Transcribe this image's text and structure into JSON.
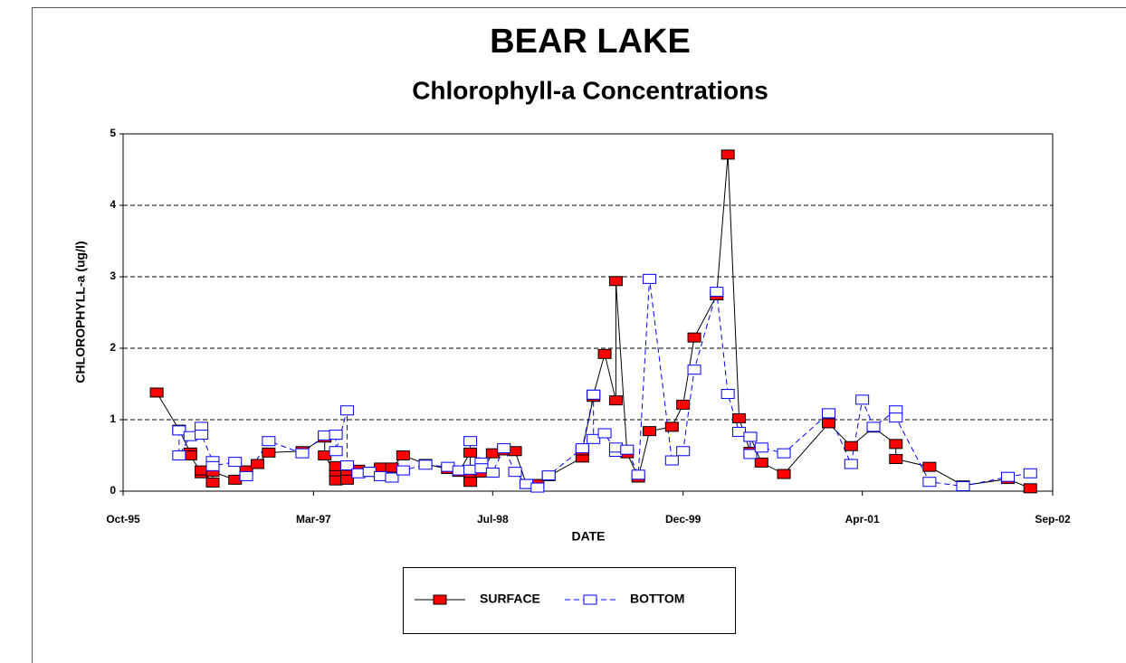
{
  "chart_data": {
    "type": "line",
    "title": "BEAR LAKE",
    "subtitle": "Chlorophyll-a Concentrations",
    "x_label": "DATE",
    "y_label": "CHLOROPHYLL-a (ug/l)",
    "xlim": [
      "1995-10",
      "2002-09"
    ],
    "xticks": [
      {
        "value": "1995-10",
        "label": "Oct-95"
      },
      {
        "value": "1997-03",
        "label": "Mar-97"
      },
      {
        "value": "1998-07",
        "label": "Jul-98"
      },
      {
        "value": "1999-12",
        "label": "Dec-99"
      },
      {
        "value": "2001-04",
        "label": "Apr-01"
      },
      {
        "value": "2002-09",
        "label": "Sep-02"
      }
    ],
    "ylim": [
      0,
      5
    ],
    "yticks": [
      0,
      1,
      2,
      3,
      4,
      5
    ],
    "grid": true,
    "legend": "bottom",
    "series": [
      {
        "name": "SURFACE",
        "color": "#ff0000",
        "x": [
          "1996-01",
          "1996-03",
          "1996-04",
          "1996-04",
          "1996-05",
          "1996-05",
          "1996-06",
          "1996-06",
          "1996-08",
          "1996-09",
          "1996-10",
          "1996-11",
          "1997-02",
          "1997-04",
          "1997-04",
          "1997-05",
          "1997-05",
          "1997-05",
          "1997-06",
          "1997-06",
          "1997-07",
          "1997-08",
          "1997-09",
          "1997-10",
          "1997-11",
          "1998-01",
          "1998-03",
          "1998-04",
          "1998-04",
          "1998-05",
          "1998-05",
          "1998-05",
          "1998-06",
          "1998-07",
          "1998-08",
          "1998-09",
          "1998-10",
          "1998-11",
          "1998-12",
          "1999-03",
          "1999-03",
          "1999-04",
          "1999-04",
          "1999-05",
          "1999-06",
          "1999-06",
          "1999-07",
          "1999-08",
          "1999-09",
          "1999-11",
          "1999-12",
          "2000-01",
          "2000-03",
          "2000-04",
          "2000-05",
          "2000-06",
          "2000-06",
          "2000-07",
          "2000-09",
          "2001-01",
          "2001-03",
          "2001-05",
          "2001-07",
          "2001-07",
          "2001-10",
          "2002-01",
          "2002-05",
          "2002-07"
        ],
        "values": [
          1.38,
          0.86,
          0.54,
          0.5,
          0.25,
          0.29,
          0.12,
          0.27,
          0.16,
          0.29,
          0.38,
          0.54,
          0.56,
          0.75,
          0.5,
          0.24,
          0.35,
          0.15,
          0.23,
          0.16,
          0.3,
          0.27,
          0.33,
          0.33,
          0.5,
          0.38,
          0.31,
          0.28,
          0.27,
          0.54,
          0.2,
          0.13,
          0.26,
          0.53,
          0.57,
          0.56,
          0.1,
          0.1,
          0.21,
          0.47,
          0.57,
          1.32,
          1.35,
          1.92,
          1.27,
          2.94,
          0.53,
          0.19,
          0.84,
          0.9,
          1.21,
          2.15,
          2.74,
          4.71,
          1.02,
          0.55,
          0.76,
          0.4,
          0.24,
          0.95,
          0.63,
          0.89,
          0.66,
          0.45,
          0.34,
          0.08,
          0.17,
          0.04
        ]
      },
      {
        "name": "BOTTOM",
        "color": "#0000ff",
        "x": [
          "1996-03",
          "1996-03",
          "1996-04",
          "1996-05",
          "1996-05",
          "1996-06",
          "1996-06",
          "1996-08",
          "1996-09",
          "1996-11",
          "1997-02",
          "1997-04",
          "1997-05",
          "1997-05",
          "1997-06",
          "1997-06",
          "1997-07",
          "1997-08",
          "1997-09",
          "1997-10",
          "1997-11",
          "1998-01",
          "1998-03",
          "1998-04",
          "1998-05",
          "1998-05",
          "1998-06",
          "1998-06",
          "1998-07",
          "1998-08",
          "1998-09",
          "1998-10",
          "1998-11",
          "1998-12",
          "1999-03",
          "1999-04",
          "1999-04",
          "1999-05",
          "1999-06",
          "1999-06",
          "1999-07",
          "1999-08",
          "1999-09",
          "1999-11",
          "1999-12",
          "2000-01",
          "2000-03",
          "2000-04",
          "2000-05",
          "2000-06",
          "2000-06",
          "2000-07",
          "2000-09",
          "2001-01",
          "2001-03",
          "2001-04",
          "2001-05",
          "2001-07",
          "2001-07",
          "2001-10",
          "2002-01",
          "2002-05",
          "2002-07"
        ],
        "values": [
          0.85,
          0.5,
          0.77,
          0.9,
          0.79,
          0.42,
          0.35,
          0.41,
          0.21,
          0.7,
          0.53,
          0.78,
          0.79,
          0.56,
          1.13,
          0.36,
          0.25,
          0.27,
          0.21,
          0.19,
          0.29,
          0.37,
          0.34,
          0.29,
          0.3,
          0.7,
          0.4,
          0.32,
          0.26,
          0.6,
          0.27,
          0.1,
          0.05,
          0.22,
          0.6,
          1.35,
          0.73,
          0.81,
          0.55,
          0.61,
          0.58,
          0.23,
          2.97,
          0.43,
          0.56,
          1.7,
          2.79,
          1.36,
          0.83,
          0.76,
          0.52,
          0.61,
          0.53,
          1.09,
          0.38,
          1.28,
          0.9,
          1.13,
          1.03,
          0.13,
          0.07,
          0.2,
          0.25
        ]
      }
    ]
  }
}
